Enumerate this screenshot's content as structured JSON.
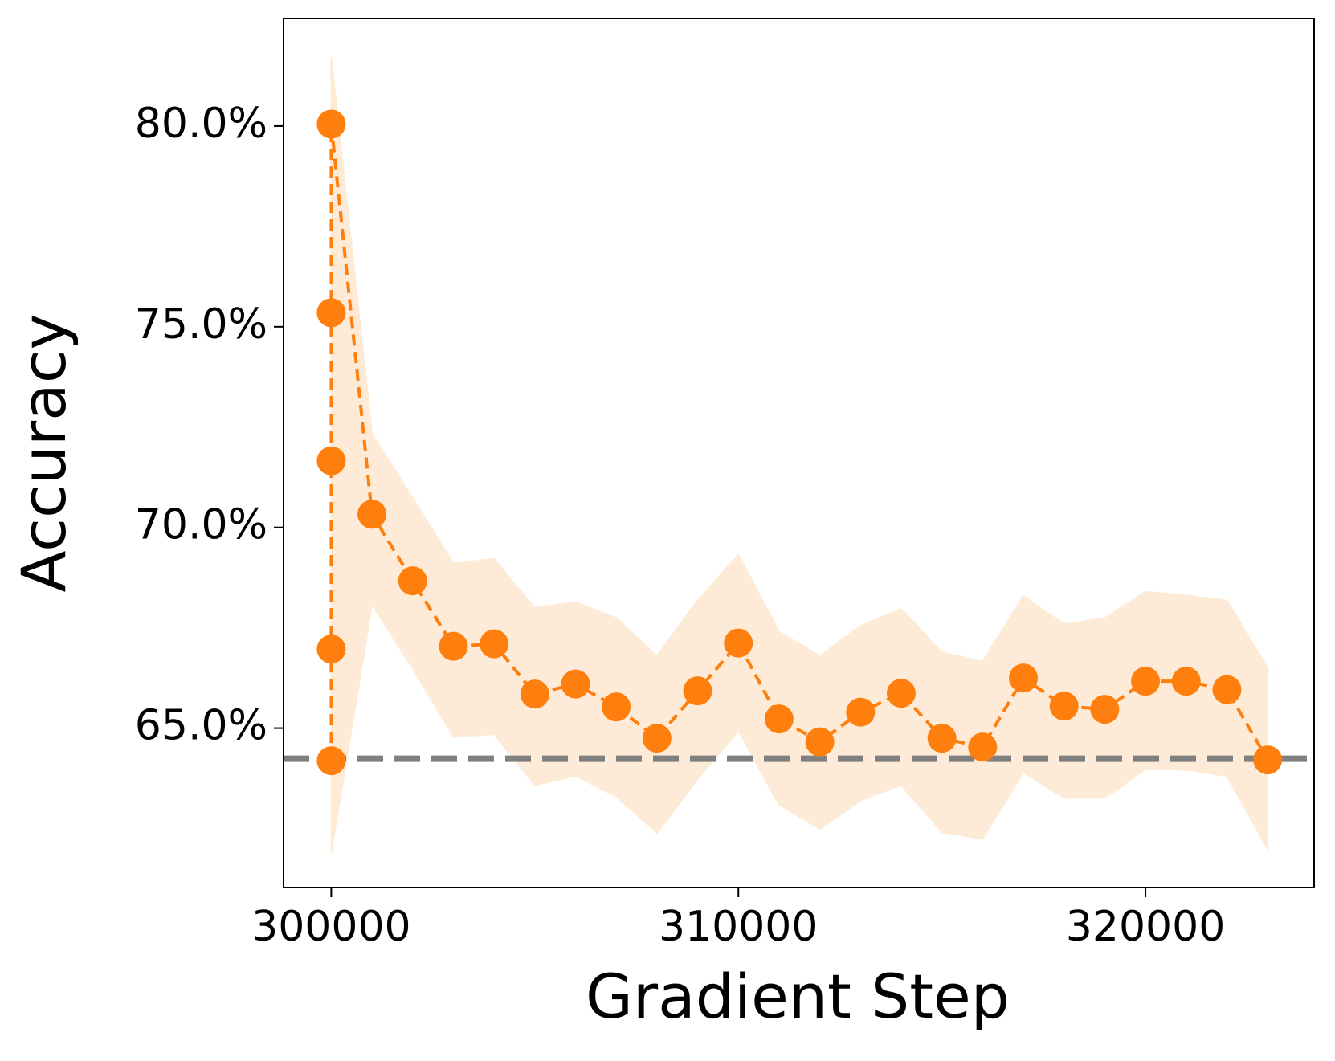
{
  "chart_data": {
    "type": "line",
    "xlabel": "Gradient Step",
    "ylabel": "Accuracy",
    "xlim": [
      298828,
      324142
    ],
    "ylim": [
      61.03,
      82.68
    ],
    "xticks": [
      300000,
      310000,
      320000
    ],
    "yticks": [
      {
        "value": 65,
        "label": "65.0%"
      },
      {
        "value": 70,
        "label": "70.0%"
      },
      {
        "value": 75,
        "label": "75.0%"
      },
      {
        "value": 80,
        "label": "80.0%"
      }
    ],
    "series": [
      {
        "color": "#ff7f0e",
        "band_color": "#fdebd7",
        "x": [
          300000,
          300000,
          300000,
          300000,
          300000,
          301000,
          302000,
          303000,
          304000,
          305000,
          306000,
          307000,
          308000,
          309000,
          310000,
          311000,
          312000,
          313000,
          314000,
          315000,
          316000,
          317000,
          318000,
          319000,
          320000,
          321000,
          322000,
          323000
        ],
        "values": [
          64.19,
          66.97,
          71.66,
          75.35,
          80.05,
          70.33,
          68.67,
          67.04,
          67.1,
          65.85,
          66.1,
          65.53,
          64.75,
          65.93,
          67.12,
          65.23,
          64.66,
          65.4,
          65.87,
          64.75,
          64.53,
          66.25,
          65.55,
          65.47,
          66.17,
          66.17,
          65.96,
          64.21
        ],
        "lower": [
          61.9,
          61.9,
          61.9,
          61.9,
          61.9,
          68.08,
          66.49,
          64.79,
          64.85,
          63.58,
          63.81,
          63.3,
          62.39,
          63.73,
          64.94,
          63.09,
          62.49,
          63.2,
          63.58,
          62.41,
          62.24,
          63.9,
          63.26,
          63.26,
          63.98,
          63.96,
          63.81,
          61.99
        ],
        "upper": [
          81.7,
          81.7,
          81.7,
          81.7,
          81.7,
          72.33,
          70.73,
          69.1,
          69.22,
          67.99,
          68.14,
          67.74,
          66.8,
          68.18,
          69.33,
          67.4,
          66.8,
          67.55,
          67.97,
          66.89,
          66.66,
          68.29,
          67.59,
          67.74,
          68.4,
          68.31,
          68.18,
          66.49
        ]
      }
    ],
    "reference_line": {
      "value": 64.24,
      "color": "#808080"
    }
  }
}
